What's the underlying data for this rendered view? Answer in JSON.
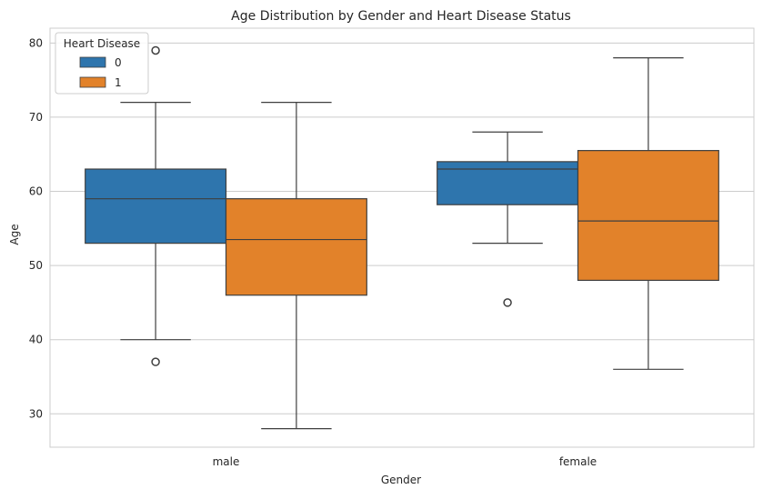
{
  "chart_data": {
    "type": "box",
    "title": "Age Distribution by Gender and Heart Disease Status",
    "xlabel": "Gender",
    "ylabel": "Age",
    "categories": [
      "male",
      "female"
    ],
    "ylim": [
      25.5,
      82
    ],
    "yticks": [
      30,
      40,
      50,
      60,
      70,
      80
    ],
    "grid": "y",
    "legend": {
      "title": "Heart Disease",
      "position": "top-left"
    },
    "series": [
      {
        "name": "0",
        "color": "#2e75ad",
        "boxes": [
          {
            "category": "male",
            "whisker_low": 40,
            "q1": 53,
            "median": 59,
            "q3": 63,
            "whisker_high": 72,
            "outliers": [
              37,
              79
            ]
          },
          {
            "category": "female",
            "whisker_low": 53,
            "q1": 58.2,
            "median": 63,
            "q3": 64,
            "whisker_high": 68,
            "outliers": [
              45
            ]
          }
        ]
      },
      {
        "name": "1",
        "color": "#e2822a",
        "boxes": [
          {
            "category": "male",
            "whisker_low": 28,
            "q1": 46,
            "median": 53.5,
            "q3": 59,
            "whisker_high": 72,
            "outliers": []
          },
          {
            "category": "female",
            "whisker_low": 36,
            "q1": 48,
            "median": 56,
            "q3": 65.5,
            "whisker_high": 78,
            "outliers": []
          }
        ]
      }
    ]
  }
}
